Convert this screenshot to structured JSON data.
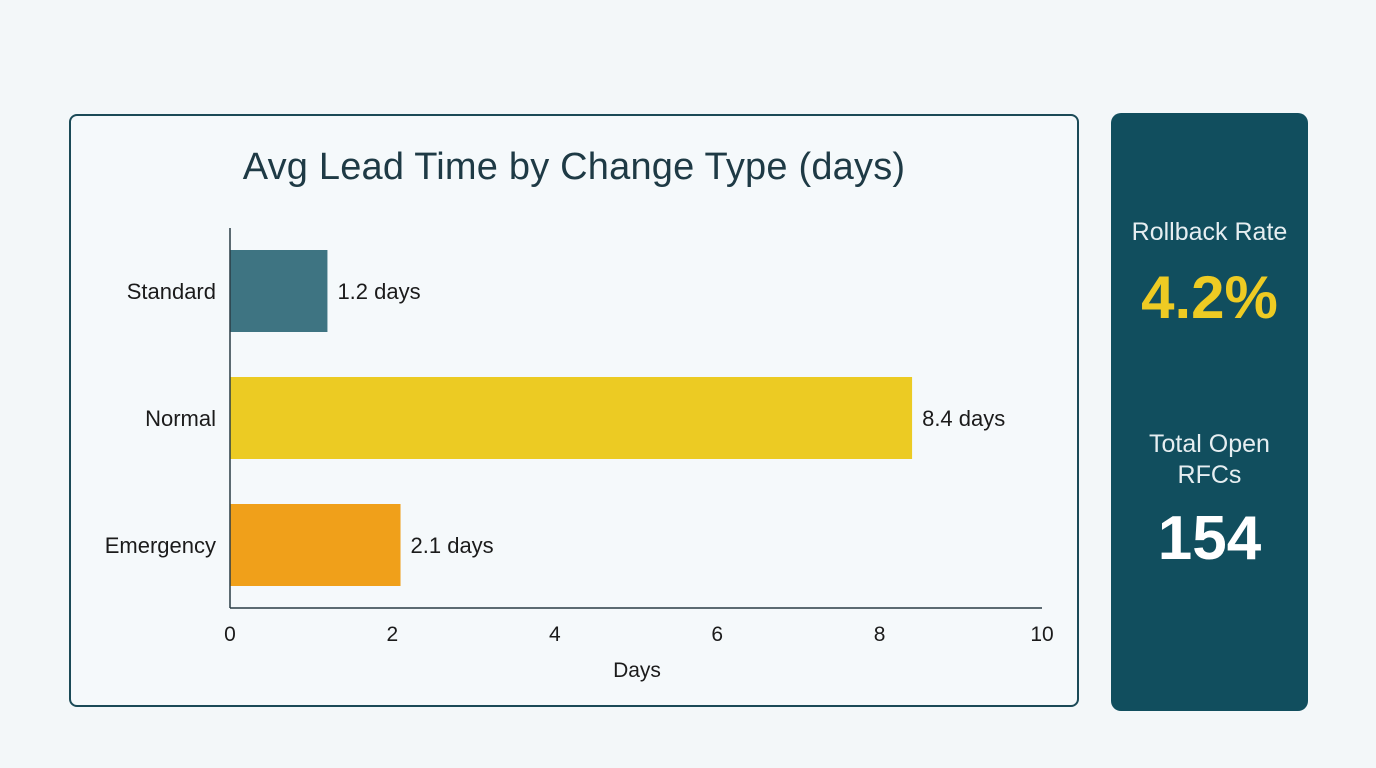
{
  "chart_data": {
    "type": "bar",
    "orientation": "horizontal",
    "title": "Avg Lead Time by Change Type (days)",
    "xlabel": "Days",
    "ylabel": "",
    "categories": [
      "Standard",
      "Normal",
      "Emergency"
    ],
    "values": [
      1.2,
      8.4,
      2.1
    ],
    "data_labels": [
      "1.2 days",
      "8.4 days",
      "2.1 days"
    ],
    "colors": [
      "#3e7482",
      "#eccb23",
      "#f0a01a"
    ],
    "xlim": [
      0,
      10
    ],
    "xticks": [
      0,
      2,
      4,
      6,
      8,
      10
    ],
    "grid": false
  },
  "kpis": {
    "rollback": {
      "label": "Rollback Rate",
      "value": "4.2%"
    },
    "open_rfcs": {
      "label": "Total Open RFCs",
      "value": "154"
    }
  },
  "colors": {
    "panel": "#114e5e",
    "accent": "#eecb23",
    "border": "#1b4a57"
  }
}
